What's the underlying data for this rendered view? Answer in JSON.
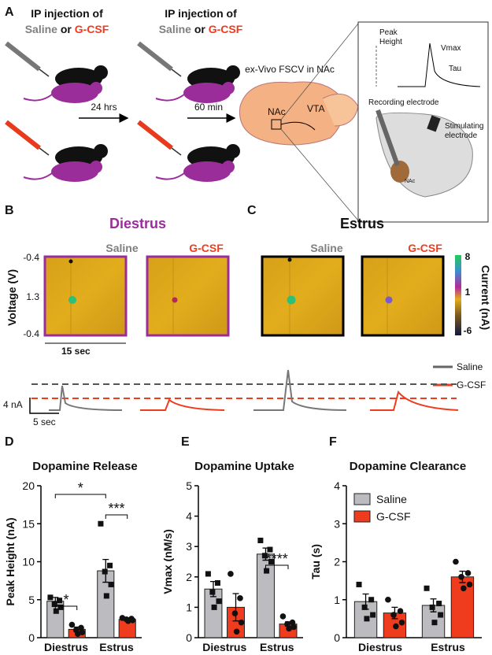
{
  "panel_a": {
    "label": "A",
    "injection_1": {
      "line1": "IP injection of",
      "saline": "Saline",
      "or": "or",
      "gcsf": "G-CSF"
    },
    "injection_2": {
      "line1": "IP injection of",
      "saline": "Saline",
      "or": "or",
      "gcsf": "G-CSF"
    },
    "arrow_1": "24 hrs",
    "arrow_2": "60 min",
    "method": "ex-Vivo FSCV in NAc",
    "brain_nac": "NAc",
    "brain_vta": "VTA",
    "inset": {
      "peak": "Peak",
      "height": "Height",
      "vmax": "Vmax",
      "tau": "Tau",
      "recording": "Recording electrode",
      "stimulating": "Stimulating",
      "electrode": "electrode",
      "nac": "NAc"
    }
  },
  "panel_b": {
    "label": "B",
    "title": "Diestrus",
    "saline": "Saline",
    "gcsf": "G-CSF",
    "voltage_label": "Voltage (V)",
    "v_top": "-0.4",
    "v_mid": "1.3",
    "v_bottom": "-0.4",
    "time_scale": "15 sec"
  },
  "panel_c": {
    "label": "C",
    "title": "Estrus",
    "saline": "Saline",
    "gcsf": "G-CSF",
    "current_label": "Current (nA)",
    "c_top": "8",
    "c_mid": "1",
    "c_bottom": "-6"
  },
  "traces": {
    "legend_saline": "Saline",
    "legend_gcsf": "G-CSF",
    "amp_scale": "4 nA",
    "time_scale": "5 sec"
  },
  "chart_data": [
    {
      "panel": "D",
      "type": "bar",
      "title": "Dopamine Release",
      "y_label": "Peak Height (nA)",
      "categories": [
        "Diestrus",
        "Estrus"
      ],
      "ylim": [
        0,
        20
      ],
      "yticks": [
        0,
        5,
        10,
        15,
        20
      ],
      "series": [
        {
          "name": "Saline",
          "color": "#bcbcc0",
          "values": [
            4.8,
            8.8
          ],
          "errors": [
            0.5,
            1.5
          ],
          "points": [
            [
              5.3,
              4.9,
              4.4,
              4.0,
              3.5
            ],
            [
              15.0,
              9.5,
              8.7,
              7.0,
              5.5
            ]
          ]
        },
        {
          "name": "G-CSF",
          "color": "#f03c1e",
          "values": [
            1.1,
            2.4
          ],
          "errors": [
            0.3,
            0.2
          ],
          "points": [
            [
              1.7,
              1.3,
              1.0,
              0.7,
              0.5
            ],
            [
              2.6,
              2.5,
              2.4,
              2.3,
              2.2
            ]
          ]
        }
      ],
      "annotations": [
        "*",
        "*",
        "***"
      ]
    },
    {
      "panel": "E",
      "type": "bar",
      "title": "Dopamine Uptake",
      "y_label": "Vmax (nM/s)",
      "categories": [
        "Diestrus",
        "Estrus"
      ],
      "ylim": [
        0,
        5
      ],
      "yticks": [
        0,
        1,
        2,
        3,
        4,
        5
      ],
      "series": [
        {
          "name": "Saline",
          "color": "#bcbcc0",
          "values": [
            1.6,
            2.75
          ],
          "errors": [
            0.25,
            0.2
          ],
          "points": [
            [
              2.1,
              1.8,
              1.5,
              1.2,
              1.0
            ],
            [
              3.2,
              2.9,
              2.7,
              2.5,
              2.2
            ]
          ]
        },
        {
          "name": "G-CSF",
          "color": "#f03c1e",
          "values": [
            1.0,
            0.45
          ],
          "errors": [
            0.45,
            0.07
          ],
          "points": [
            [
              2.1,
              1.3,
              0.8,
              0.5,
              0.2
            ],
            [
              0.7,
              0.5,
              0.45,
              0.35,
              0.3
            ]
          ]
        }
      ],
      "annotations": [
        "****"
      ]
    },
    {
      "panel": "F",
      "type": "bar",
      "title": "Dopamine Clearance",
      "y_label": "Tau (s)",
      "categories": [
        "Diestrus",
        "Estrus"
      ],
      "ylim": [
        0,
        4
      ],
      "yticks": [
        0,
        1,
        2,
        3,
        4
      ],
      "legend": "top-left",
      "series": [
        {
          "name": "Saline",
          "color": "#bcbcc0",
          "values": [
            0.95,
            0.85
          ],
          "errors": [
            0.2,
            0.17
          ],
          "points": [
            [
              1.4,
              1.0,
              0.8,
              0.6,
              0.5
            ],
            [
              1.3,
              0.9,
              0.8,
              0.6,
              0.4
            ]
          ]
        },
        {
          "name": "G-CSF",
          "color": "#f03c1e",
          "values": [
            0.65,
            1.6
          ],
          "errors": [
            0.15,
            0.15
          ],
          "points": [
            [
              1.0,
              0.7,
              0.6,
              0.4,
              0.3
            ],
            [
              2.0,
              1.7,
              1.6,
              1.4,
              1.3
            ]
          ]
        }
      ],
      "annotations": []
    }
  ]
}
